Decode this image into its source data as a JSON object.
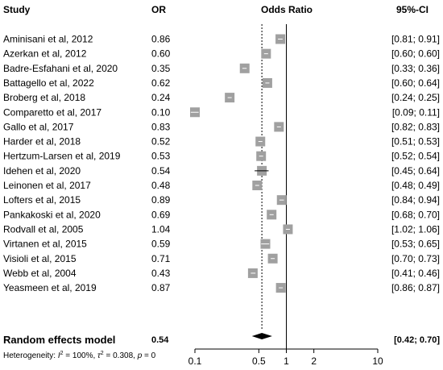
{
  "headers": {
    "study": "Study",
    "or": "OR",
    "odds_ratio": "Odds Ratio",
    "ci": "95%-CI"
  },
  "summary": {
    "label": "Random effects model",
    "or": "0.54",
    "ci": "[0.42; 0.70]"
  },
  "heterogeneity": {
    "prefix": "Heterogeneity: ",
    "i2_symbol": "I",
    "i2_value": " = 100%, ",
    "tau_symbol": "τ",
    "tau_value": " = 0.308, ",
    "p_symbol": "p",
    "p_value": " = 0"
  },
  "chart_data": {
    "type": "forest",
    "x_scale": "log",
    "xlim": [
      0.1,
      10
    ],
    "x_ticks": [
      {
        "value": 0.1,
        "label": "0.1"
      },
      {
        "value": 0.5,
        "label": "0.5"
      },
      {
        "value": 1,
        "label": "1"
      },
      {
        "value": 2,
        "label": "2"
      },
      {
        "value": 10,
        "label": "10"
      }
    ],
    "null_line": 1,
    "summary_line": 0.54,
    "box_color": "#a0a0a0",
    "studies": [
      {
        "study": "Aminisani et al, 2012",
        "or_text": "0.86",
        "ci_text": "[0.81; 0.91]",
        "or": 0.86,
        "lo": 0.81,
        "hi": 0.91
      },
      {
        "study": "Azerkan et al, 2012",
        "or_text": "0.60",
        "ci_text": "[0.60; 0.60]",
        "or": 0.6,
        "lo": 0.6,
        "hi": 0.6
      },
      {
        "study": "Badre-Esfahani et al, 2020",
        "or_text": "0.35",
        "ci_text": "[0.33; 0.36]",
        "or": 0.35,
        "lo": 0.33,
        "hi": 0.36
      },
      {
        "study": "Battagello et al, 2022",
        "or_text": "0.62",
        "ci_text": "[0.60; 0.64]",
        "or": 0.62,
        "lo": 0.6,
        "hi": 0.64
      },
      {
        "study": "Broberg et al, 2018",
        "or_text": "0.24",
        "ci_text": "[0.24; 0.25]",
        "or": 0.24,
        "lo": 0.24,
        "hi": 0.25
      },
      {
        "study": "Comparetto et al, 2017",
        "or_text": "0.10",
        "ci_text": "[0.09; 0.11]",
        "or": 0.1,
        "lo": 0.09,
        "hi": 0.11
      },
      {
        "study": "Gallo et al, 2017",
        "or_text": "0.83",
        "ci_text": "[0.82; 0.83]",
        "or": 0.83,
        "lo": 0.82,
        "hi": 0.83
      },
      {
        "study": "Harder et al, 2018",
        "or_text": "0.52",
        "ci_text": "[0.51; 0.53]",
        "or": 0.52,
        "lo": 0.51,
        "hi": 0.53
      },
      {
        "study": "Hertzum-Larsen et al, 2019",
        "or_text": "0.53",
        "ci_text": "[0.52; 0.54]",
        "or": 0.53,
        "lo": 0.52,
        "hi": 0.54
      },
      {
        "study": "Idehen et al, 2020",
        "or_text": "0.54",
        "ci_text": "[0.45; 0.64]",
        "or": 0.54,
        "lo": 0.45,
        "hi": 0.64
      },
      {
        "study": "Leinonen et al, 2017",
        "or_text": "0.48",
        "ci_text": "[0.48; 0.49]",
        "or": 0.48,
        "lo": 0.48,
        "hi": 0.49
      },
      {
        "study": "Lofters et al, 2015",
        "or_text": "0.89",
        "ci_text": "[0.84; 0.94]",
        "or": 0.89,
        "lo": 0.84,
        "hi": 0.94
      },
      {
        "study": "Pankakoski et al, 2020",
        "or_text": "0.69",
        "ci_text": "[0.68; 0.70]",
        "or": 0.69,
        "lo": 0.68,
        "hi": 0.7
      },
      {
        "study": "Rodvall et al, 2005",
        "or_text": "1.04",
        "ci_text": "[1.02; 1.06]",
        "or": 1.04,
        "lo": 1.02,
        "hi": 1.06
      },
      {
        "study": "Virtanen et al, 2015",
        "or_text": "0.59",
        "ci_text": "[0.53; 0.65]",
        "or": 0.59,
        "lo": 0.53,
        "hi": 0.65
      },
      {
        "study": "Visioli et al, 2015",
        "or_text": "0.71",
        "ci_text": "[0.70; 0.73]",
        "or": 0.71,
        "lo": 0.7,
        "hi": 0.73
      },
      {
        "study": "Webb et al, 2004",
        "or_text": "0.43",
        "ci_text": "[0.41; 0.46]",
        "or": 0.43,
        "lo": 0.41,
        "hi": 0.46
      },
      {
        "study": "Yeasmeen et al, 2019",
        "or_text": "0.87",
        "ci_text": "[0.86; 0.87]",
        "or": 0.87,
        "lo": 0.86,
        "hi": 0.87
      }
    ],
    "pooled": {
      "or": 0.54,
      "lo": 0.42,
      "hi": 0.7
    }
  }
}
